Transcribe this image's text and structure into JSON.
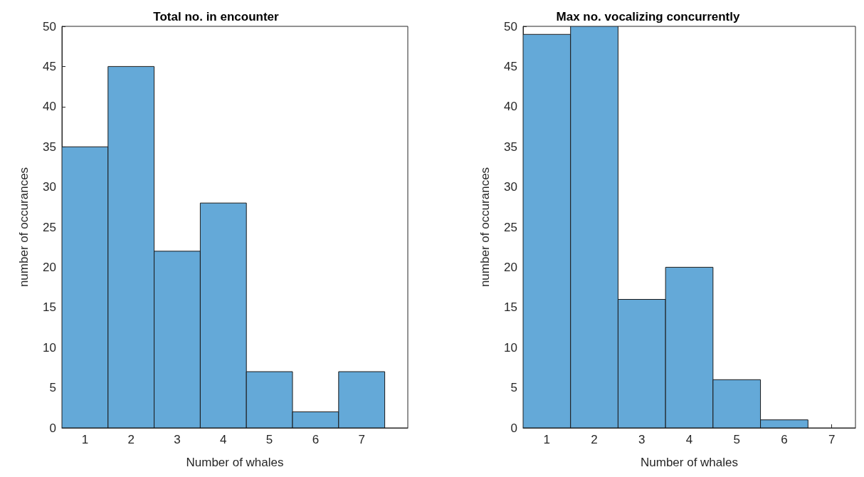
{
  "chart_data": [
    {
      "type": "histogram",
      "title": "Total no. in encounter",
      "xlabel": "Number of whales",
      "ylabel": "number of occurances",
      "bins": [
        0.5,
        1.5,
        2.5,
        3.5,
        4.5,
        5.5,
        6.5,
        7.5
      ],
      "values": [
        35,
        45,
        22,
        28,
        7,
        2,
        7
      ],
      "color": "#64a9d8",
      "xlim": [
        0.5,
        8
      ],
      "xticks": [
        1,
        2,
        3,
        4,
        5,
        6,
        7
      ],
      "ylim": [
        0,
        50
      ],
      "yticks": [
        0,
        5,
        10,
        15,
        20,
        25,
        30,
        35,
        40,
        45,
        50
      ]
    },
    {
      "type": "histogram",
      "title": "Max no. vocalizing concurrently",
      "xlabel": "Number of whales",
      "ylabel": "number of occurances",
      "bins": [
        0.5,
        1.5,
        2.5,
        3.5,
        4.5,
        5.5,
        6.5,
        7.5
      ],
      "values": [
        49,
        50,
        16,
        20,
        6,
        1,
        0
      ],
      "color": "#64a9d8",
      "xlim": [
        0.5,
        7.5
      ],
      "xticks": [
        1,
        2,
        3,
        4,
        5,
        6,
        7
      ],
      "ylim": [
        0,
        50
      ],
      "yticks": [
        0,
        5,
        10,
        15,
        20,
        25,
        30,
        35,
        40,
        45,
        50
      ]
    }
  ]
}
